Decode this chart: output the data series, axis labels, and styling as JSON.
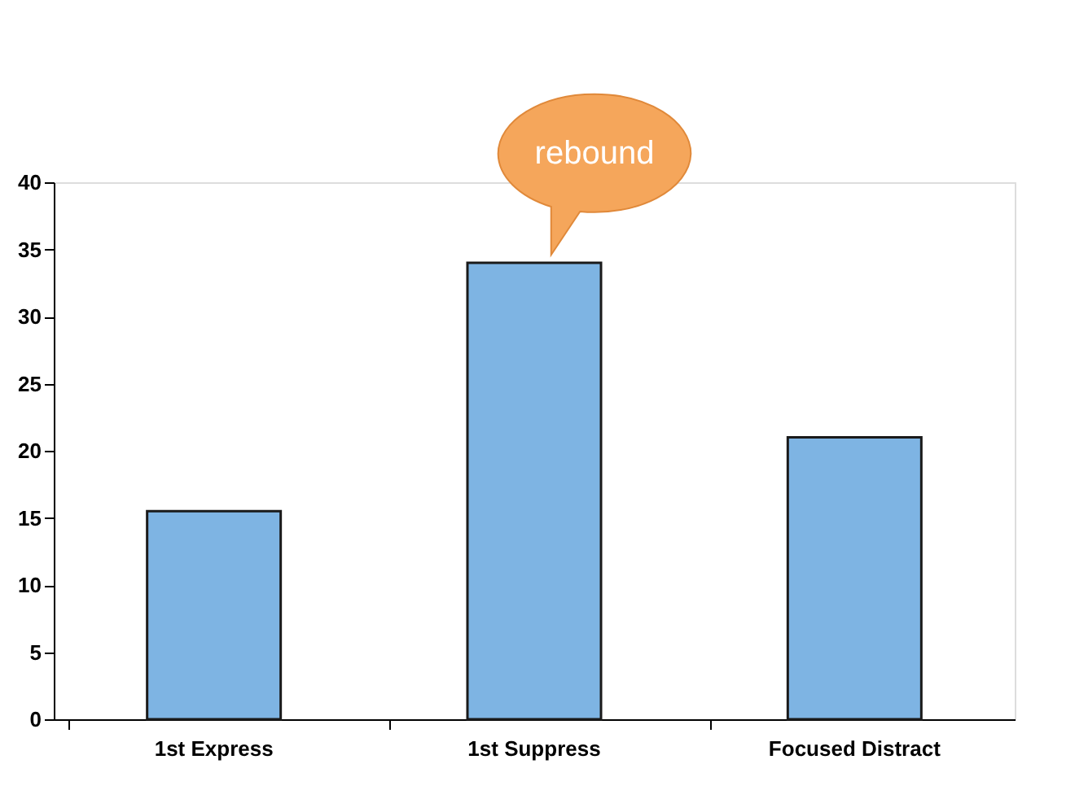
{
  "chart_data": {
    "type": "bar",
    "categories": [
      "1st Express",
      "1st Suppress",
      "Focused Distract"
    ],
    "values": [
      15.5,
      34,
      21
    ],
    "color": "#7eb4e3",
    "ylim": [
      0,
      40
    ],
    "yticks": [
      0,
      5,
      10,
      15,
      20,
      25,
      30,
      35,
      40
    ],
    "grid": false,
    "annotations": [
      {
        "text": "rebound",
        "x": "1st Suppress",
        "y": 34
      }
    ]
  }
}
